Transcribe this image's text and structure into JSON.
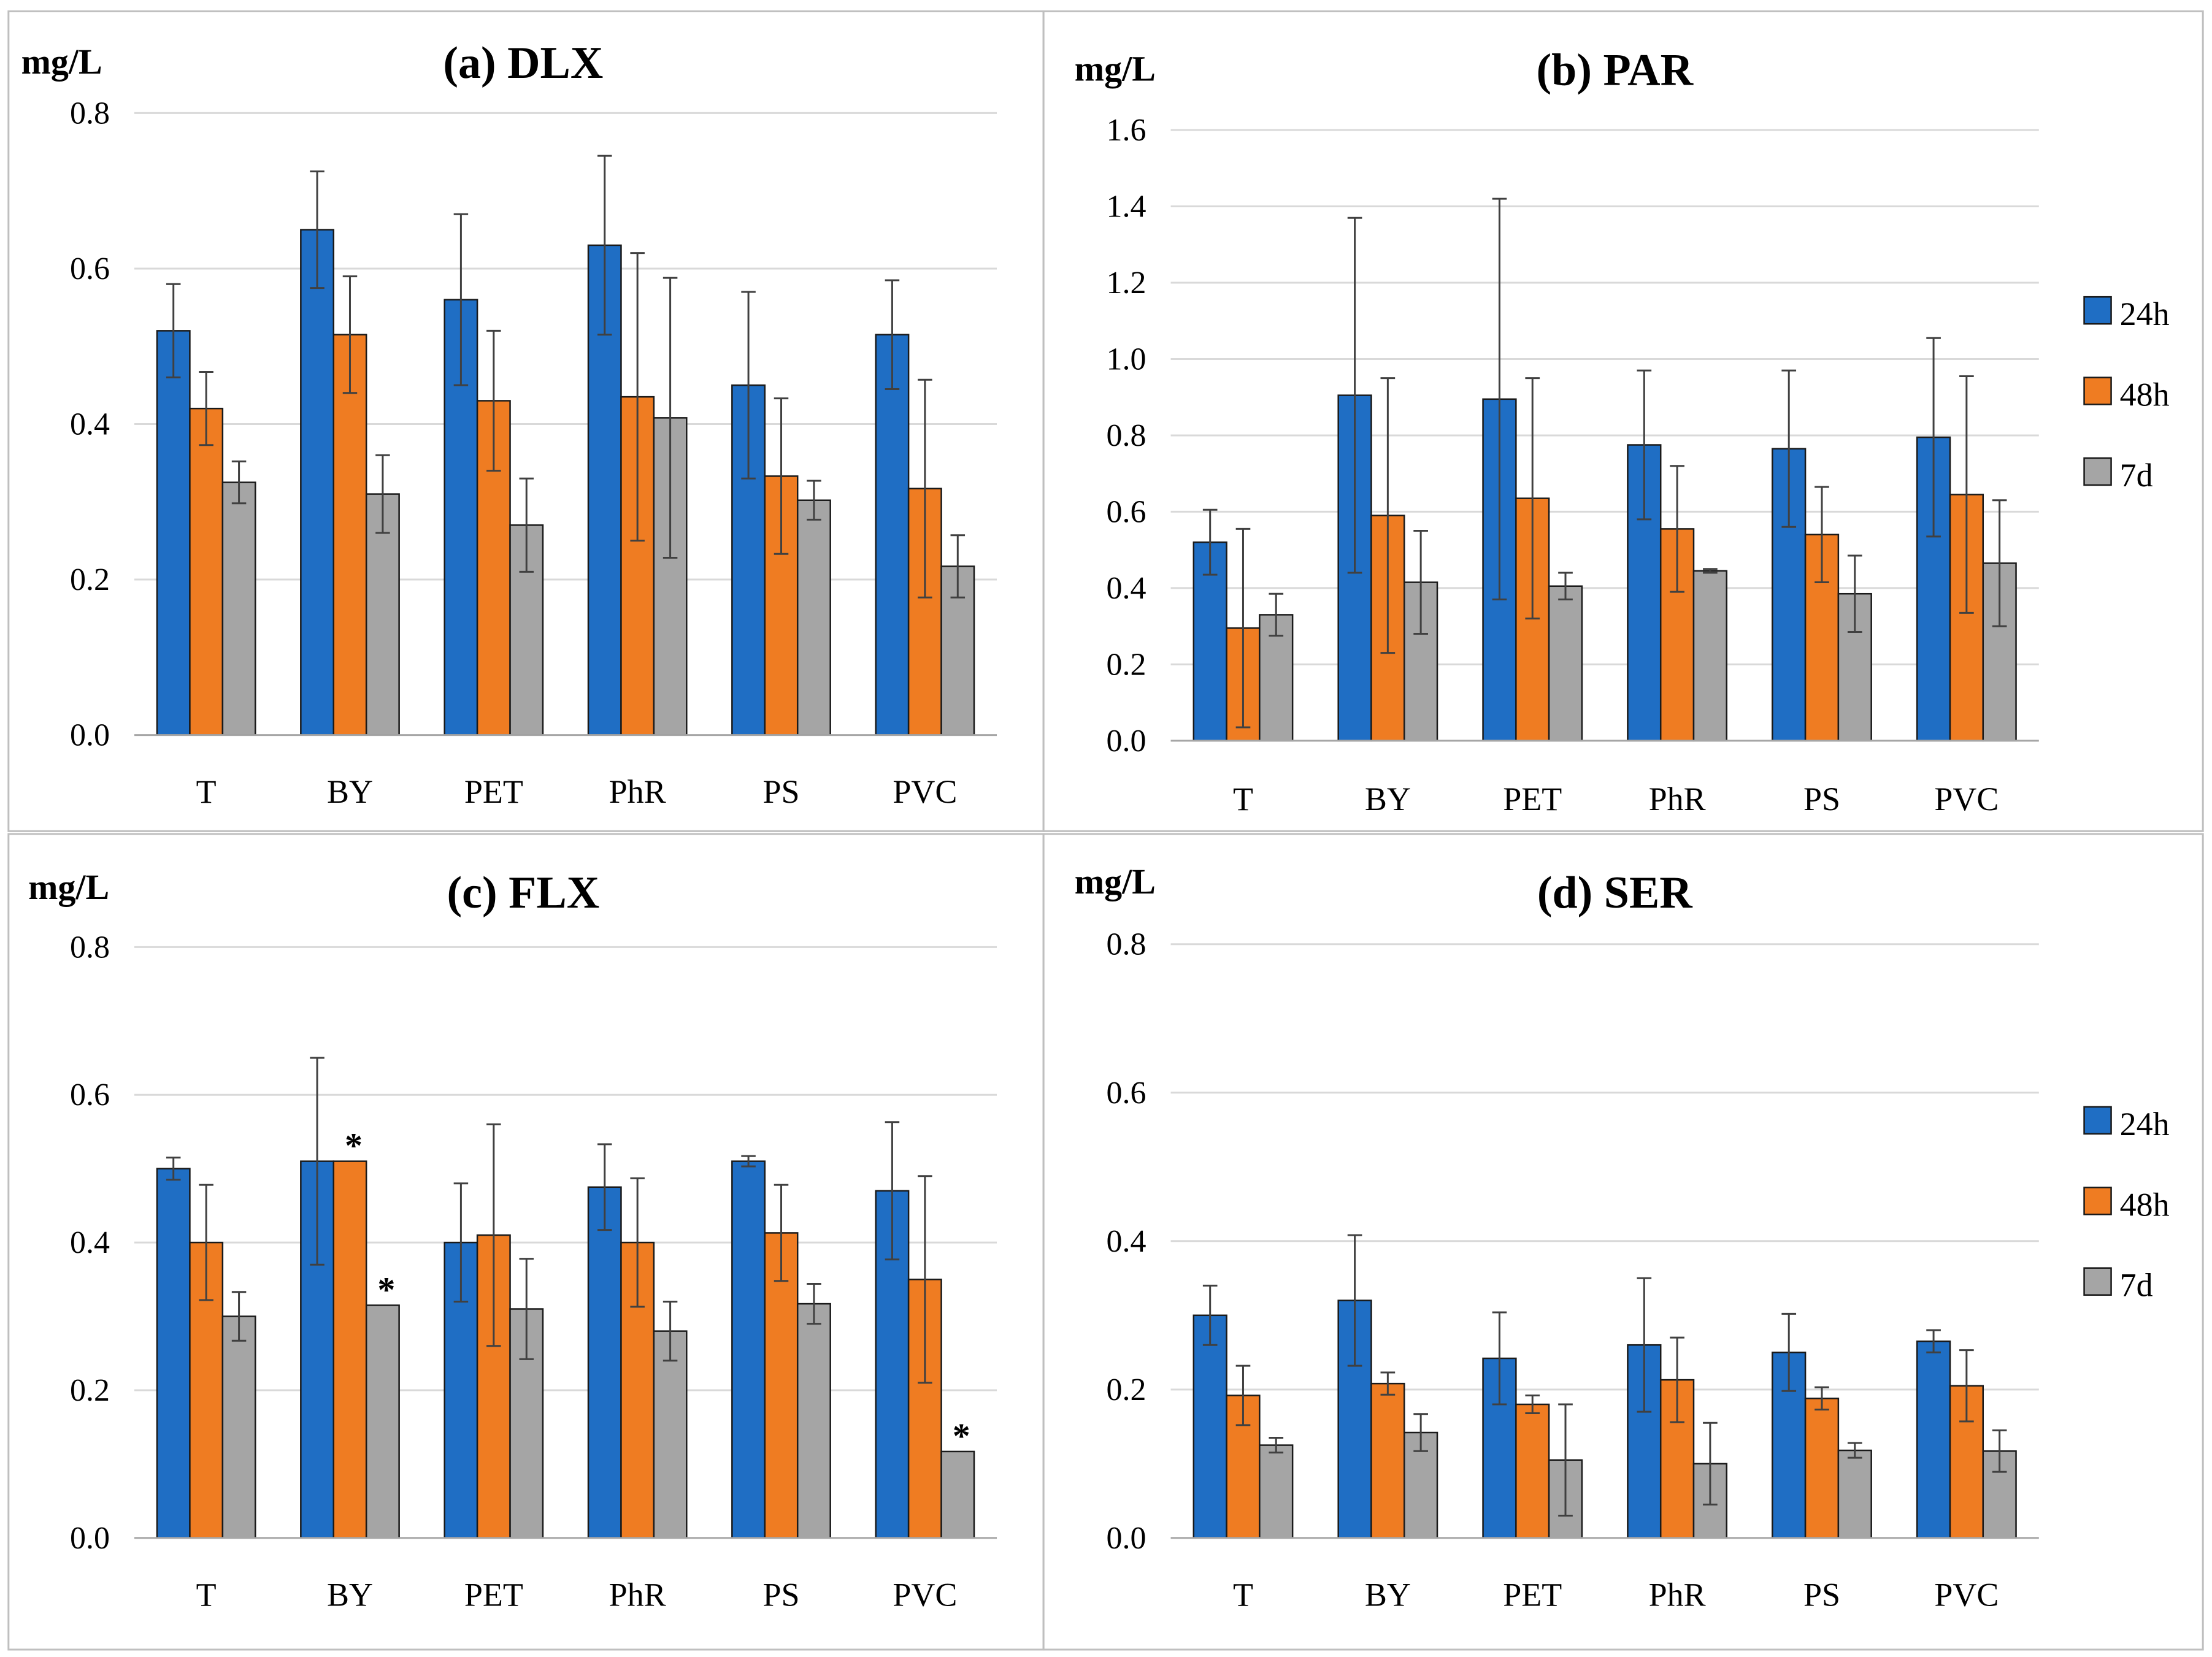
{
  "colors": {
    "24h": "#1f6ec4",
    "48h": "#ef7c22",
    "7d": "#a5a5a5",
    "grid": "#d9d9d9",
    "axis": "#a6a6a6",
    "frame": "#bfbfbf",
    "text": "#000000",
    "error": "#404040"
  },
  "legend": [
    "24h",
    "48h",
    "7d"
  ],
  "chart_data": [
    {
      "type": "bar",
      "title": "(a) DLX",
      "ylabel": "mg/L",
      "xlabel": "",
      "categories": [
        "T",
        "BY",
        "PET",
        "PhR",
        "PS",
        "PVC"
      ],
      "ylim": [
        0,
        0.8
      ],
      "yticks": [
        "0.0",
        "0.2",
        "0.4",
        "0.6",
        "0.8"
      ],
      "yticks_values": [
        0,
        0.2,
        0.4,
        0.6,
        0.8
      ],
      "legend_visible": false,
      "series": [
        {
          "name": "24h",
          "values": [
            0.52,
            0.65,
            0.56,
            0.63,
            0.45,
            0.515
          ],
          "errors": [
            0.06,
            0.075,
            0.11,
            0.115,
            0.12,
            0.07
          ]
        },
        {
          "name": "48h",
          "values": [
            0.42,
            0.515,
            0.43,
            0.435,
            0.333,
            0.317
          ],
          "errors": [
            0.047,
            0.075,
            0.09,
            0.185,
            0.1,
            0.14
          ]
        },
        {
          "name": "7d",
          "values": [
            0.325,
            0.31,
            0.27,
            0.408,
            0.302,
            0.217
          ],
          "errors": [
            0.027,
            0.05,
            0.06,
            0.18,
            0.025,
            0.04
          ]
        }
      ],
      "annotations": []
    },
    {
      "type": "bar",
      "title": "(b) PAR",
      "ylabel": "mg/L",
      "xlabel": "",
      "categories": [
        "T",
        "BY",
        "PET",
        "PhR",
        "PS",
        "PVC"
      ],
      "ylim": [
        0,
        1.6
      ],
      "yticks": [
        "0.0",
        "0.2",
        "0.4",
        "0.6",
        "0.8",
        "1.0",
        "1.2",
        "1.4",
        "1.6"
      ],
      "yticks_values": [
        0,
        0.2,
        0.4,
        0.6,
        0.8,
        1.0,
        1.2,
        1.4,
        1.6
      ],
      "legend_visible": true,
      "series": [
        {
          "name": "24h",
          "values": [
            0.52,
            0.905,
            0.895,
            0.775,
            0.765,
            0.795
          ],
          "errors": [
            0.085,
            0.465,
            0.525,
            0.195,
            0.205,
            0.26
          ]
        },
        {
          "name": "48h",
          "values": [
            0.295,
            0.59,
            0.635,
            0.555,
            0.54,
            0.645
          ],
          "errors": [
            0.26,
            0.36,
            0.315,
            0.165,
            0.125,
            0.31
          ]
        },
        {
          "name": "7d",
          "values": [
            0.33,
            0.415,
            0.405,
            0.445,
            0.385,
            0.465
          ],
          "errors": [
            0.055,
            0.135,
            0.035,
            0.005,
            0.1,
            0.165
          ]
        }
      ],
      "annotations": []
    },
    {
      "type": "bar",
      "title": "(c) FLX",
      "ylabel": "mg/L",
      "xlabel": "",
      "categories": [
        "T",
        "BY",
        "PET",
        "PhR",
        "PS",
        "PVC"
      ],
      "ylim": [
        0,
        0.8
      ],
      "yticks": [
        "0.0",
        "0.2",
        "0.4",
        "0.6",
        "0.8"
      ],
      "yticks_values": [
        0,
        0.2,
        0.4,
        0.6,
        0.8
      ],
      "legend_visible": false,
      "series": [
        {
          "name": "24h",
          "values": [
            0.5,
            0.51,
            0.4,
            0.475,
            0.51,
            0.47
          ],
          "errors": [
            0.015,
            0.14,
            0.08,
            0.058,
            0.007,
            0.093
          ]
        },
        {
          "name": "48h",
          "values": [
            0.4,
            0.51,
            0.41,
            0.4,
            0.413,
            0.35
          ],
          "errors": [
            0.078,
            0,
            0.15,
            0.087,
            0.065,
            0.14
          ]
        },
        {
          "name": "7d",
          "values": [
            0.3,
            0.315,
            0.31,
            0.28,
            0.317,
            0.117
          ],
          "errors": [
            0.033,
            0,
            0.068,
            0.04,
            0.027,
            0
          ]
        }
      ],
      "annotations": [
        {
          "text": "*",
          "category": "BY",
          "series": "48h"
        },
        {
          "text": "*",
          "category": "BY",
          "series": "7d"
        },
        {
          "text": "*",
          "category": "PVC",
          "series": "7d"
        }
      ]
    },
    {
      "type": "bar",
      "title": "(d) SER",
      "ylabel": "mg/L",
      "xlabel": "",
      "categories": [
        "T",
        "BY",
        "PET",
        "PhR",
        "PS",
        "PVC"
      ],
      "ylim": [
        0,
        0.8
      ],
      "yticks": [
        "0.0",
        "0.2",
        "0.4",
        "0.6",
        "0.8"
      ],
      "yticks_values": [
        0,
        0.2,
        0.4,
        0.6,
        0.8
      ],
      "legend_visible": true,
      "series": [
        {
          "name": "24h",
          "values": [
            0.3,
            0.32,
            0.242,
            0.26,
            0.25,
            0.265
          ],
          "errors": [
            0.04,
            0.088,
            0.062,
            0.09,
            0.052,
            0.015
          ]
        },
        {
          "name": "48h",
          "values": [
            0.192,
            0.208,
            0.18,
            0.213,
            0.188,
            0.205
          ],
          "errors": [
            0.04,
            0.015,
            0.012,
            0.057,
            0.015,
            0.048
          ]
        },
        {
          "name": "7d",
          "values": [
            0.125,
            0.142,
            0.105,
            0.1,
            0.118,
            0.117
          ],
          "errors": [
            0.01,
            0.025,
            0.075,
            0.055,
            0.01,
            0.028
          ]
        }
      ],
      "annotations": []
    }
  ]
}
